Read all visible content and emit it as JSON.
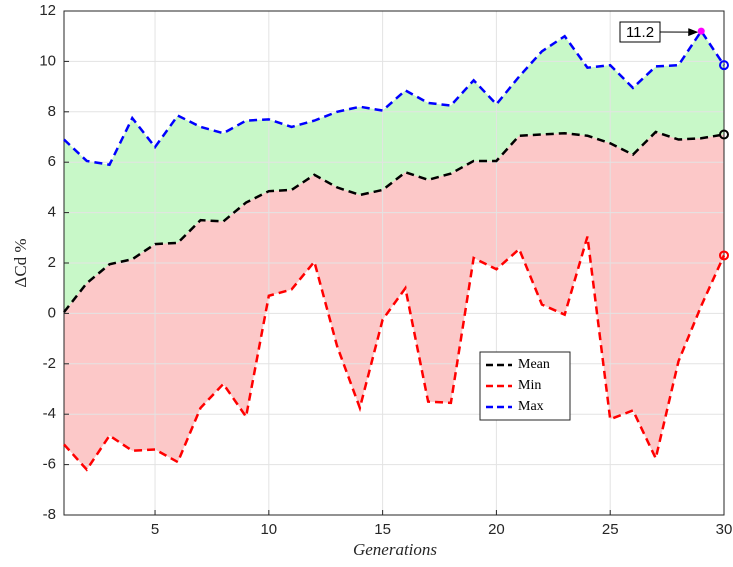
{
  "chart_data": {
    "type": "line",
    "x_label": "Generations",
    "y_label": "ΔCd %",
    "x": [
      1,
      2,
      3,
      4,
      5,
      6,
      7,
      8,
      9,
      10,
      11,
      12,
      13,
      14,
      15,
      16,
      17,
      18,
      19,
      20,
      21,
      22,
      23,
      24,
      25,
      26,
      27,
      28,
      29,
      30
    ],
    "series": [
      {
        "name": "Mean",
        "color": "#000000",
        "fill": "#fcc8c8",
        "values": [
          0.05,
          1.2,
          1.95,
          2.15,
          2.75,
          2.8,
          3.7,
          3.65,
          4.4,
          4.85,
          4.9,
          5.5,
          5.0,
          4.7,
          4.9,
          5.6,
          5.3,
          5.55,
          6.05,
          6.05,
          7.05,
          7.1,
          7.15,
          7.05,
          6.75,
          6.3,
          7.2,
          6.9,
          6.95,
          7.1
        ]
      },
      {
        "name": "Min",
        "color": "#ff0000",
        "values": [
          -5.2,
          -6.2,
          -4.85,
          -5.45,
          -5.4,
          -5.9,
          -3.75,
          -2.8,
          -4.1,
          0.7,
          0.95,
          2.05,
          -1.3,
          -3.75,
          -0.25,
          1.0,
          -3.5,
          -3.55,
          2.2,
          1.75,
          2.55,
          0.35,
          -0.05,
          3.05,
          -4.2,
          -3.85,
          -5.75,
          -1.9,
          0.3,
          2.3
        ]
      },
      {
        "name": "Max",
        "color": "#0000ff",
        "fill": "#c8f8c8",
        "values": [
          6.9,
          6.05,
          5.9,
          7.75,
          6.6,
          7.85,
          7.4,
          7.15,
          7.65,
          7.7,
          7.4,
          7.65,
          8.0,
          8.2,
          8.05,
          8.85,
          8.35,
          8.25,
          9.25,
          8.3,
          9.4,
          10.4,
          11.0,
          9.75,
          9.85,
          8.95,
          9.8,
          9.85,
          11.2,
          9.85
        ]
      }
    ],
    "annotations": [
      {
        "x": 29,
        "y": 11.2,
        "label": "11.2",
        "color": "#ff00ff"
      }
    ],
    "xlim": [
      1,
      30
    ],
    "xticks": [
      5,
      10,
      15,
      20,
      25,
      30
    ],
    "ylim": [
      -8,
      12
    ],
    "yticks": [
      -8,
      -6,
      -4,
      -2,
      0,
      2,
      4,
      6,
      8,
      10,
      12
    ],
    "grid": true,
    "legend": "lower right"
  }
}
